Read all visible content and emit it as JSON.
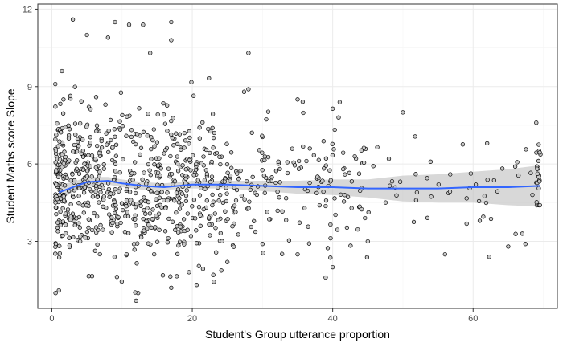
{
  "chart_data": {
    "type": "scatter",
    "title": "",
    "xlabel": "Student's Group utterance proportion",
    "ylabel": "Student Maths score Slope",
    "xlim": [
      -2,
      72
    ],
    "ylim": [
      0.4,
      12.2
    ],
    "x_ticks": [
      0,
      20,
      40,
      60
    ],
    "x_tick_labels": [
      "0",
      "20",
      "40",
      "60"
    ],
    "y_ticks": [
      3,
      6,
      9,
      12
    ],
    "y_tick_labels": [
      "3",
      "6",
      "9",
      "12"
    ],
    "grid": true,
    "legend": "none",
    "colors": {
      "point_fill": "#c8c8c8",
      "point_stroke": "#000000",
      "smooth_line": "#3366ff",
      "ribbon": "#bebebe",
      "grid_major": "#ebebeb",
      "grid_minor": "#f5f5f5",
      "panel_border": "#333333"
    },
    "notable_points": [
      {
        "x": 3,
        "y": 11.6
      },
      {
        "x": 5,
        "y": 11.0
      },
      {
        "x": 8,
        "y": 10.9
      },
      {
        "x": 9,
        "y": 11.5
      },
      {
        "x": 11,
        "y": 11.4
      },
      {
        "x": 13,
        "y": 11.4
      },
      {
        "x": 14,
        "y": 10.3
      },
      {
        "x": 17,
        "y": 10.8
      },
      {
        "x": 17,
        "y": 11.5
      },
      {
        "x": 28,
        "y": 10.3
      },
      {
        "x": 28,
        "y": 8.9
      },
      {
        "x": 35,
        "y": 8.5
      },
      {
        "x": 41,
        "y": 8.4
      },
      {
        "x": 50,
        "y": 8.0
      },
      {
        "x": 69,
        "y": 7.6
      },
      {
        "x": 1,
        "y": 1.1
      },
      {
        "x": 12,
        "y": 0.7
      },
      {
        "x": 17,
        "y": 1.2
      },
      {
        "x": 39,
        "y": 1.6
      },
      {
        "x": 56,
        "y": 2.5
      },
      {
        "x": 62,
        "y": 6.8
      },
      {
        "x": 66,
        "y": 5.9
      },
      {
        "x": 67,
        "y": 3.3
      },
      {
        "x": 65,
        "y": 2.8
      },
      {
        "x": 40,
        "y": 2.0
      },
      {
        "x": 45,
        "y": 3.0
      },
      {
        "x": 48,
        "y": 6.2
      },
      {
        "x": 52,
        "y": 4.9
      },
      {
        "x": 30,
        "y": 2.9
      },
      {
        "x": 25,
        "y": 2.2
      },
      {
        "x": 23,
        "y": 1.7
      },
      {
        "x": 35,
        "y": 2.5
      }
    ],
    "dense_region": {
      "x_min": 0.5,
      "x_max": 25,
      "y_min": 1,
      "y_max": 10,
      "approx_n": 700
    },
    "smooth_curve": {
      "x": [
        1,
        3,
        5,
        8,
        10,
        13,
        16,
        20,
        25,
        30,
        35,
        40,
        45,
        50,
        55,
        60,
        65,
        69.5
      ],
      "y": [
        4.9,
        5.1,
        5.3,
        5.35,
        5.25,
        5.15,
        5.1,
        5.2,
        5.2,
        5.15,
        5.1,
        5.1,
        5.05,
        5.05,
        5.05,
        5.1,
        5.1,
        5.15
      ]
    },
    "confidence_band": {
      "x": [
        1,
        3,
        5,
        8,
        10,
        13,
        16,
        20,
        25,
        30,
        35,
        40,
        45,
        50,
        55,
        60,
        65,
        69.5
      ],
      "lower": [
        4.6,
        4.9,
        5.1,
        5.2,
        5.1,
        5.0,
        5.0,
        5.05,
        5.05,
        4.95,
        4.85,
        4.8,
        4.7,
        4.55,
        4.5,
        4.5,
        4.4,
        4.35
      ],
      "upper": [
        5.2,
        5.3,
        5.5,
        5.5,
        5.4,
        5.3,
        5.25,
        5.35,
        5.35,
        5.35,
        5.35,
        5.4,
        5.4,
        5.55,
        5.6,
        5.7,
        5.8,
        5.95
      ]
    }
  }
}
